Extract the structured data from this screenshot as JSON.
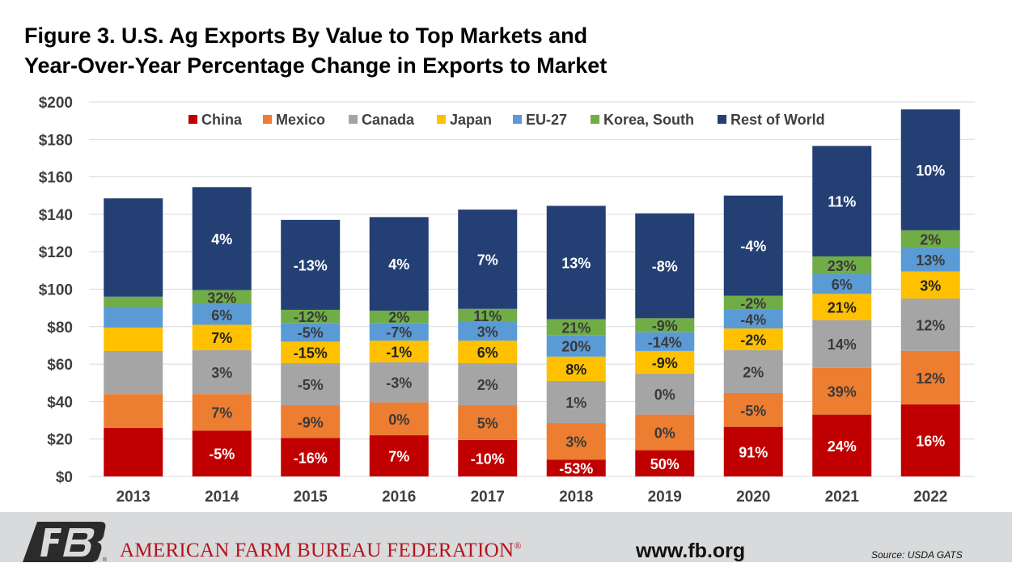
{
  "title_line1": "Figure 3. U.S. Ag Exports By Value to Top Markets and",
  "title_line2": "Year-Over-Year Percentage Change in Exports to Market",
  "footer": {
    "organization": "AMERICAN FARM BUREAU FEDERATION",
    "registered_mark": "®",
    "website": "www.fb.org",
    "source": "Source: USDA GATS",
    "logo_text": "FB"
  },
  "colors": {
    "China": "#c00000",
    "Mexico": "#ed7d31",
    "Canada": "#a5a5a5",
    "Japan": "#ffc000",
    "EU-27": "#5b9bd5",
    "Korea, South": "#70ad47",
    "Rest of World": "#243f74",
    "footer_red": "#b5121b",
    "footer_bg": "#d9dadb"
  },
  "chart_data": {
    "type": "bar",
    "stacked": true,
    "title": "Figure 3. U.S. Ag Exports By Value to Top Markets and Year-Over-Year Percentage Change in Exports to Market",
    "categories": [
      "2013",
      "2014",
      "2015",
      "2016",
      "2017",
      "2018",
      "2019",
      "2020",
      "2021",
      "2022"
    ],
    "ylim": [
      0,
      200
    ],
    "y_ticks": [
      0,
      20,
      40,
      60,
      80,
      100,
      120,
      140,
      160,
      180,
      200
    ],
    "y_tick_labels": [
      "$0",
      "$20",
      "$40",
      "$60",
      "$80",
      "$100",
      "$120",
      "$140",
      "$160",
      "$180",
      "$200"
    ],
    "grid": true,
    "legend_position": "top",
    "series": [
      {
        "name": "China",
        "values": [
          26,
          24.5,
          20.5,
          22,
          19.5,
          9,
          14,
          26.5,
          33,
          38.5
        ],
        "labels": [
          "",
          "-5%",
          "-16%",
          "7%",
          "-10%",
          "-53%",
          "50%",
          "91%",
          "24%",
          "16%"
        ]
      },
      {
        "name": "Mexico",
        "values": [
          18,
          19.5,
          17.5,
          17.5,
          18.5,
          19.5,
          19,
          18,
          25,
          28.5
        ],
        "labels": [
          "",
          "7%",
          "-9%",
          "0%",
          "5%",
          "3%",
          "0%",
          "-5%",
          "39%",
          "12%"
        ]
      },
      {
        "name": "Canada",
        "values": [
          23,
          23.5,
          22.5,
          21.5,
          22.5,
          22.5,
          22,
          23,
          25.5,
          28
        ],
        "labels": [
          "",
          "3%",
          "-5%",
          "-3%",
          "2%",
          "1%",
          "0%",
          "2%",
          "14%",
          "12%"
        ]
      },
      {
        "name": "Japan",
        "values": [
          12.5,
          13.5,
          11.5,
          11.5,
          12,
          13,
          12,
          11.5,
          14,
          14.5
        ],
        "labels": [
          "",
          "7%",
          "-15%",
          "-1%",
          "6%",
          "8%",
          "-9%",
          "-2%",
          "21%",
          "3%"
        ]
      },
      {
        "name": "EU-27",
        "values": [
          11,
          11,
          10,
          9.5,
          10,
          11.5,
          10,
          10,
          10.5,
          12.5
        ],
        "labels": [
          "",
          "6%",
          "-5%",
          "-7%",
          "3%",
          "20%",
          "-14%",
          "-4%",
          "6%",
          "13%"
        ]
      },
      {
        "name": "Korea, South",
        "values": [
          5.5,
          7.5,
          7,
          6.5,
          7,
          8.5,
          7.5,
          7.5,
          9.5,
          9.5
        ],
        "labels": [
          "",
          "32%",
          "-12%",
          "2%",
          "11%",
          "21%",
          "-9%",
          "-2%",
          "23%",
          "2%"
        ]
      },
      {
        "name": "Rest of World",
        "values": [
          52.5,
          55,
          48,
          50,
          53,
          60.5,
          56,
          53.5,
          59,
          64.5
        ],
        "labels": [
          "",
          "4%",
          "-13%",
          "4%",
          "7%",
          "13%",
          "-8%",
          "-4%",
          "11%",
          "10%"
        ]
      }
    ]
  }
}
